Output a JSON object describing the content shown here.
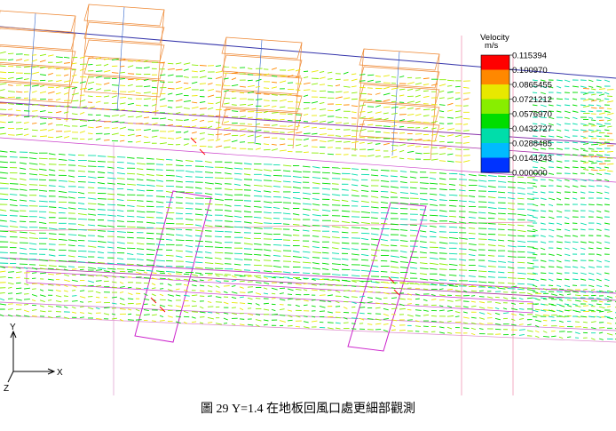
{
  "legend": {
    "title": "Velocity",
    "unit": "m/s",
    "ticks": [
      "0.115394",
      "0.100970",
      "0.0865455",
      "0.0721212",
      "0.0576970",
      "0.0432727",
      "0.0288485",
      "0.0144243",
      "0.000000"
    ],
    "colors": [
      "#ff0000",
      "#ff8800",
      "#e8e800",
      "#88ee00",
      "#00dd00",
      "#00ddaa",
      "#00bbff",
      "#0033ff"
    ]
  },
  "axes": {
    "y_label": "Y",
    "x_label": "X",
    "z_label": "Z"
  },
  "caption": "圖 29 Y=1.4 在地板回風口處更細部觀測"
}
